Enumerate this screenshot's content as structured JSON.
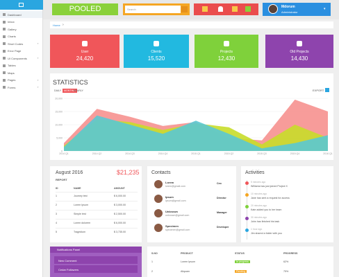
{
  "sidebar": {
    "menu": [
      "Dashboard",
      "Inbox",
      "Gallery",
      "Charts",
      "Short Codes",
      "Error Page",
      "UI Components",
      "Tables",
      "Maps",
      "Pages",
      "Forms"
    ]
  },
  "topbar": {
    "brand": "POOLED",
    "search_placeholder": "Search",
    "user": {
      "name": "Mdorum",
      "subtitle": "Administrator"
    }
  },
  "breadcrumb": "Home",
  "tiles": [
    {
      "label": "User",
      "value": "24,420",
      "color": "#f0565a"
    },
    {
      "label": "Clients",
      "value": "15,520",
      "color": "#22b9e0"
    },
    {
      "label": "Projects",
      "value": "12,430",
      "color": "#7fd13b"
    },
    {
      "label": "Old Projects",
      "value": "14,430",
      "color": "#8e44ad"
    }
  ],
  "statistics": {
    "title": "STATISTICS",
    "tabs": [
      "DAILY",
      "MONTHLY",
      "YEARLY"
    ],
    "export": "EXPORT",
    "chart": {
      "type": "area",
      "categories": [
        "2014 Q1",
        "2014 Q2",
        "2014 Q3",
        "2014 Q4",
        "2015 Q1",
        "2015 Q2",
        "2015 Q3",
        "2015 Q4",
        "2016 Q1"
      ],
      "series": [
        {
          "color": "#f6918f",
          "values": [
            3000,
            16000,
            13000,
            9500,
            11000,
            5000,
            4000,
            19500,
            15000
          ]
        },
        {
          "color": "#c8dd2a",
          "values": [
            2000,
            12000,
            11000,
            8000,
            10500,
            9000,
            2500,
            10000,
            5000
          ]
        },
        {
          "color": "#5bc8d2",
          "values": [
            1500,
            13500,
            10000,
            6500,
            11500,
            6500,
            1000,
            3000,
            6000
          ]
        }
      ],
      "ylim": [
        0,
        20000
      ],
      "yticks": [
        0,
        {
          "value": 5000,
          "label": "5,000"
        },
        {
          "value": 10000,
          "label": "10,000"
        },
        {
          "value": 15000,
          "label": "15,000"
        },
        {
          "value": 20000,
          "label": "20,000"
        }
      ],
      "grid": true
    }
  },
  "report": {
    "title": "August 2016",
    "total": "$21,235",
    "subtitle": "REPORT",
    "columns": [
      "ID",
      "NAME",
      "AMOUNT"
    ],
    "rows": [
      [
        "1",
        "Journey test",
        "$ 6,000.00"
      ],
      [
        "2",
        "Lorem Ipsum",
        "$ 3,000.00"
      ],
      [
        "3",
        "Simple test",
        "$ 2,500.00"
      ],
      [
        "4",
        "Lorem dolorem",
        "$ 6,000.00"
      ],
      [
        "5",
        "Tragedium",
        "$ 3,735.00"
      ]
    ]
  },
  "contacts": {
    "title": "Contacts",
    "items": [
      {
        "name": "Lorem",
        "email": "lorem@gmail.com",
        "role": "Ceo"
      },
      {
        "name": "Ipsum",
        "email": "ipsum@gmail.com",
        "role": "Director"
      },
      {
        "name": "Unknown",
        "email": "unknown@gmail.com",
        "role": "Manager"
      },
      {
        "name": "Specimen",
        "email": "specimen@gmail.com",
        "role": "Developer"
      }
    ]
  },
  "activities": {
    "title": "Activities",
    "items": [
      {
        "time": "5 minutes ago",
        "text": "Williams has just joined Project X"
      },
      {
        "time": "10 minutes ago",
        "text": "Jane has sent a request for access"
      },
      {
        "time": "20 minutes ago",
        "text": "Kate added you to her team"
      },
      {
        "time": "30 minutes ago",
        "text": "John has finished his task"
      },
      {
        "time": "1 hour ago",
        "text": "Jim shared a folder with you"
      }
    ]
  },
  "notifications": {
    "title": "Notifications Panel",
    "items": [
      "New Comment",
      "Cedar Followers"
    ]
  },
  "products": {
    "columns": [
      "S.NO",
      "PRODUCT",
      "STATUS",
      "PROGRESS"
    ],
    "rows": [
      [
        "1",
        "Lorem Ipsum",
        "In progress",
        "62%"
      ],
      [
        "2",
        "Aliquam",
        "Pending",
        "75%"
      ]
    ]
  }
}
